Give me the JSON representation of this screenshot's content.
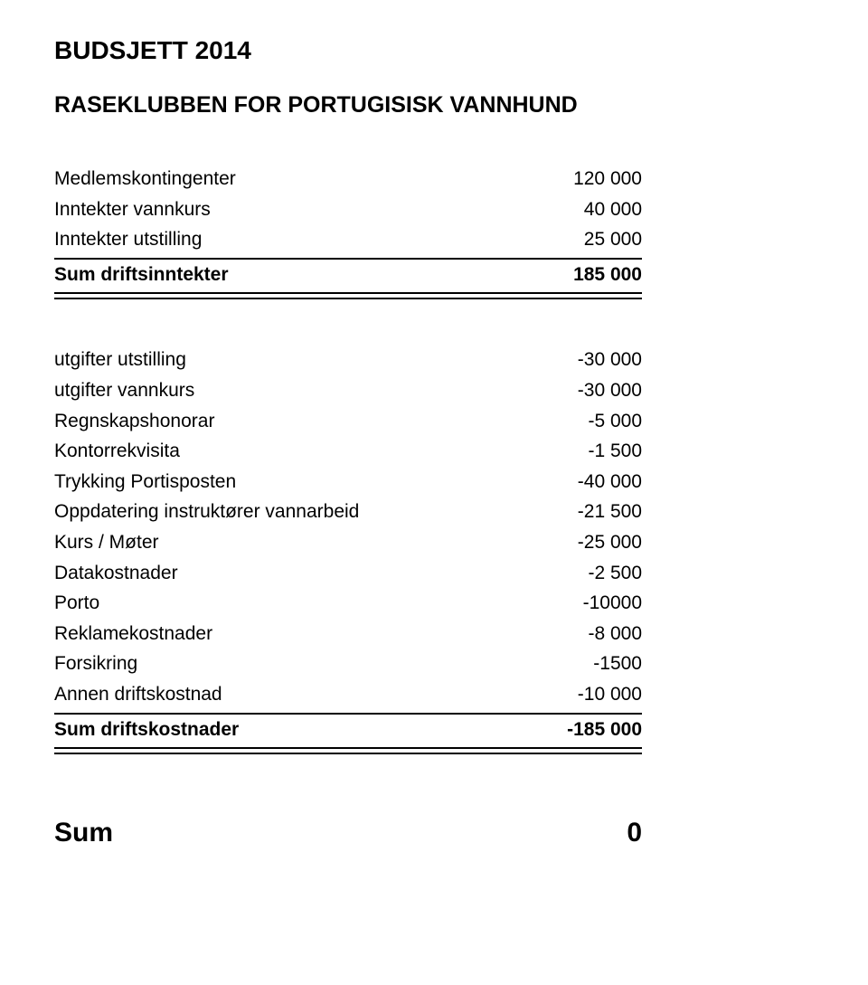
{
  "title": "BUDSJETT 2014",
  "subtitle": "RASEKLUBBEN FOR PORTUGISISK VANNHUND",
  "income": {
    "rows": [
      {
        "label": "Medlemskontingenter",
        "value": "120 000",
        "name": "row-medlemskontingenter"
      },
      {
        "label": "Inntekter vannkurs",
        "value": "40 000",
        "name": "row-inntekter-vannkurs"
      },
      {
        "label": "Inntekter utstilling",
        "value": "25 000",
        "name": "row-inntekter-utstilling"
      }
    ],
    "sum": {
      "label": "Sum driftsinntekter",
      "value": "185 000",
      "name": "row-sum-driftsinntekter"
    }
  },
  "expenses": {
    "rows": [
      {
        "label": "utgifter utstilling",
        "value": "-30 000",
        "name": "row-utgifter-utstilling"
      },
      {
        "label": "utgifter vannkurs",
        "value": "-30 000",
        "name": "row-utgifter-vannkurs"
      },
      {
        "label": "Regnskapshonorar",
        "value": "-5 000",
        "name": "row-regnskapshonorar"
      },
      {
        "label": "Kontorrekvisita",
        "value": "-1 500",
        "name": "row-kontorrekvisita"
      },
      {
        "label": "Trykking Portisposten",
        "value": "-40 000",
        "name": "row-trykking-portisposten"
      },
      {
        "label": "Oppdatering instruktører vannarbeid",
        "value": "-21 500",
        "name": "row-oppdatering-instruktorer"
      },
      {
        "label": "Kurs / Møter",
        "value": "-25 000",
        "name": "row-kurs-moter"
      },
      {
        "label": "Datakostnader",
        "value": "-2 500",
        "name": "row-datakostnader"
      },
      {
        "label": "Porto",
        "value": "-10000",
        "name": "row-porto"
      },
      {
        "label": "Reklamekostnader",
        "value": "-8 000",
        "name": "row-reklamekostnader"
      },
      {
        "label": "Forsikring",
        "value": "-1500",
        "name": "row-forsikring"
      },
      {
        "label": "Annen driftskostnad",
        "value": "-10 000",
        "name": "row-annen-driftskostnad"
      }
    ],
    "sum": {
      "label": "Sum driftskostnader",
      "value": "-185 000",
      "name": "row-sum-driftskostnader"
    }
  },
  "total": {
    "label": "Sum",
    "value": "0",
    "name": "row-total-sum"
  }
}
